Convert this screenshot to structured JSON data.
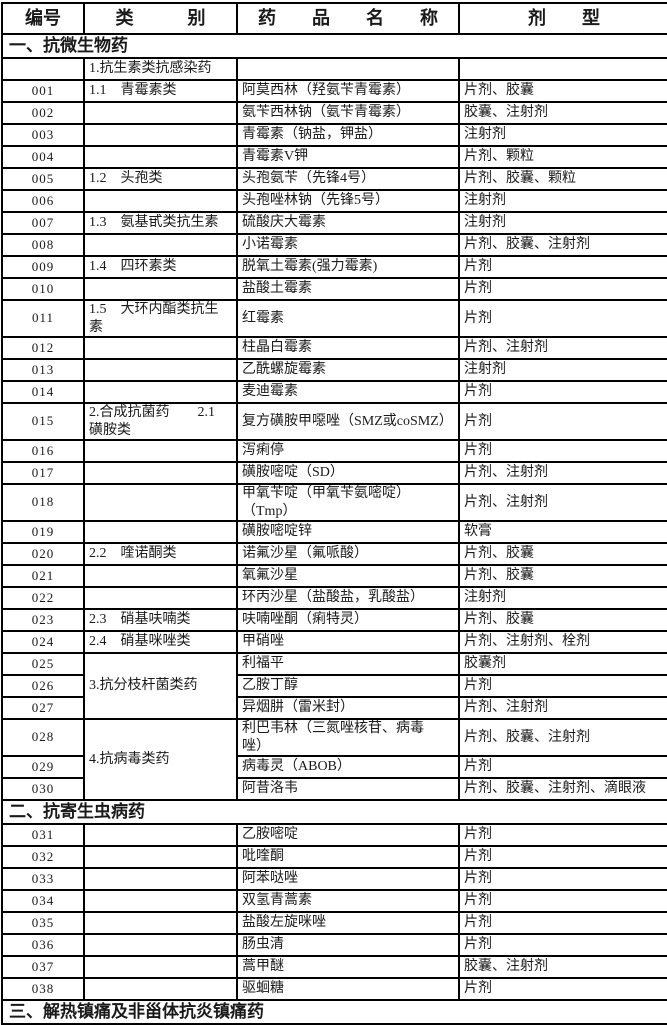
{
  "page": {
    "background": "#ffffff",
    "text_color": "#1a1a1a",
    "border_color": "#000000"
  },
  "table": {
    "columns": [
      "编号",
      "类　　　别",
      "药　　品　　名　　称",
      "剂　　型"
    ],
    "rows": [
      {
        "type": "section",
        "label": "一、抗微生物药"
      },
      {
        "type": "row",
        "id": "",
        "cat": "1.抗生素类抗感染药",
        "drug": "",
        "form": ""
      },
      {
        "type": "row",
        "id": "001",
        "cat": "1.1　青霉素类",
        "drug": "阿莫西林（羟氨苄青霉素）",
        "form": "片剂、胶囊"
      },
      {
        "type": "row",
        "id": "002",
        "cat": "",
        "drug": "氨苄西林钠（氨苄青霉素）",
        "form": "胶囊、注射剂"
      },
      {
        "type": "row",
        "id": "003",
        "cat": "",
        "drug": "青霉素（钠盐，钾盐）",
        "form": "注射剂"
      },
      {
        "type": "row",
        "id": "004",
        "cat": "",
        "drug": "青霉素V钾",
        "form": "片剂、颗粒"
      },
      {
        "type": "row",
        "id": "005",
        "cat": "1.2　头孢类",
        "drug": "头孢氨苄（先锋4号）",
        "form": "片剂、胶囊、颗粒"
      },
      {
        "type": "row",
        "id": "006",
        "cat": "",
        "drug": "头孢唑林钠（先锋5号）",
        "form": "注射剂"
      },
      {
        "type": "row",
        "id": "007",
        "cat": "1.3　氨基甙类抗生素",
        "drug": "硫酸庆大霉素",
        "form": "注射剂"
      },
      {
        "type": "row",
        "id": "008",
        "cat": "",
        "drug": "小诺霉素",
        "form": "片剂、胶囊、注射剂"
      },
      {
        "type": "row",
        "id": "009",
        "cat": "1.4　四环素类",
        "drug": "脱氧土霉素(强力霉素)",
        "form": "片剂"
      },
      {
        "type": "row",
        "id": "010",
        "cat": "",
        "drug": "盐酸土霉素",
        "form": "片剂"
      },
      {
        "type": "row",
        "id": "011",
        "cat": "1.5　大环内酯类抗生\n素",
        "drug": "红霉素",
        "form": "片剂",
        "tall": true
      },
      {
        "type": "row",
        "id": "012",
        "cat": "",
        "drug": "柱晶白霉素",
        "form": "片剂、注射剂"
      },
      {
        "type": "row",
        "id": "013",
        "cat": "",
        "drug": "乙酰螺旋霉素",
        "form": "注射剂"
      },
      {
        "type": "row",
        "id": "014",
        "cat": "",
        "drug": "麦迪霉素",
        "form": "片剂"
      },
      {
        "type": "row",
        "id": "015",
        "cat": "2.合成抗菌药　　2.1\n磺胺类",
        "drug": "复方磺胺甲噁唑（SMZ或coSMZ）",
        "form": "片剂",
        "tall": true
      },
      {
        "type": "row",
        "id": "016",
        "cat": "",
        "drug": "泻痢停",
        "form": "片剂"
      },
      {
        "type": "row",
        "id": "017",
        "cat": "",
        "drug": "磺胺嘧啶（SD）",
        "form": "片剂、注射剂"
      },
      {
        "type": "row",
        "id": "018",
        "cat": "",
        "drug": "甲氧苄啶（甲氧苄氨嘧啶）\n（Tmp）",
        "form": "片剂、注射剂",
        "tall": true
      },
      {
        "type": "row",
        "id": "019",
        "cat": "",
        "drug": "磺胺嘧啶锌",
        "form": "软膏"
      },
      {
        "type": "row",
        "id": "020",
        "cat": "2.2　喹诺酮类",
        "drug": "诺氟沙星（氟哌酸）",
        "form": "片剂、胶囊"
      },
      {
        "type": "row",
        "id": "021",
        "cat": "",
        "drug": "氧氟沙星",
        "form": "片剂、胶囊"
      },
      {
        "type": "row",
        "id": "022",
        "cat": "",
        "drug": "环丙沙星（盐酸盐，乳酸盐）",
        "form": "注射剂"
      },
      {
        "type": "row",
        "id": "023",
        "cat": "2.3　硝基呋喃类",
        "drug": "呋喃唑酮（痢特灵）",
        "form": "片剂、胶囊"
      },
      {
        "type": "row",
        "id": "024",
        "cat": "2.4　硝基咪唑类",
        "drug": "甲硝唑",
        "form": "片剂、注射剂、栓剂"
      },
      {
        "type": "row",
        "id": "025",
        "cat": "3.抗分枝杆菌类药",
        "catSpan": 3,
        "drug": "利福平",
        "form": "胶囊剂"
      },
      {
        "type": "row",
        "id": "026",
        "cat": null,
        "drug": "乙胺丁醇",
        "form": "片剂"
      },
      {
        "type": "row",
        "id": "027",
        "cat": null,
        "drug": "异烟肼（雷米封）",
        "form": "片剂、注射剂"
      },
      {
        "type": "row",
        "id": "028",
        "cat": "4.抗病毒类药",
        "catSpan": 3,
        "drug": "利巴韦林（三氮唑核苷、病毒\n唑）",
        "form": "片剂、胶囊、注射剂",
        "tall": true
      },
      {
        "type": "row",
        "id": "029",
        "cat": null,
        "drug": "病毒灵（ABOB）",
        "form": "片剂"
      },
      {
        "type": "row",
        "id": "030",
        "cat": null,
        "drug": "阿昔洛韦",
        "form": "片剂、胶囊、注射剂、滴眼液"
      },
      {
        "type": "section",
        "label": "二、抗寄生虫病药"
      },
      {
        "type": "row",
        "id": "031",
        "cat": "",
        "drug": "乙胺嘧啶",
        "form": "片剂"
      },
      {
        "type": "row",
        "id": "032",
        "cat": "",
        "drug": "吡喹酮",
        "form": "片剂"
      },
      {
        "type": "row",
        "id": "033",
        "cat": "",
        "drug": "阿苯哒唑",
        "form": "片剂"
      },
      {
        "type": "row",
        "id": "034",
        "cat": "",
        "drug": "双氢青蒿素",
        "form": "片剂"
      },
      {
        "type": "row",
        "id": "035",
        "cat": "",
        "drug": "盐酸左旋咪唑",
        "form": "片剂"
      },
      {
        "type": "row",
        "id": "036",
        "cat": "",
        "drug": "肠虫清",
        "form": "片剂"
      },
      {
        "type": "row",
        "id": "037",
        "cat": "",
        "drug": "蒿甲醚",
        "form": "胶囊、注射剂"
      },
      {
        "type": "row",
        "id": "038",
        "cat": "",
        "drug": "驱蛔糖",
        "form": "片剂"
      },
      {
        "type": "section",
        "label": "三、解热镇痛及非甾体抗炎镇痛药"
      }
    ]
  }
}
